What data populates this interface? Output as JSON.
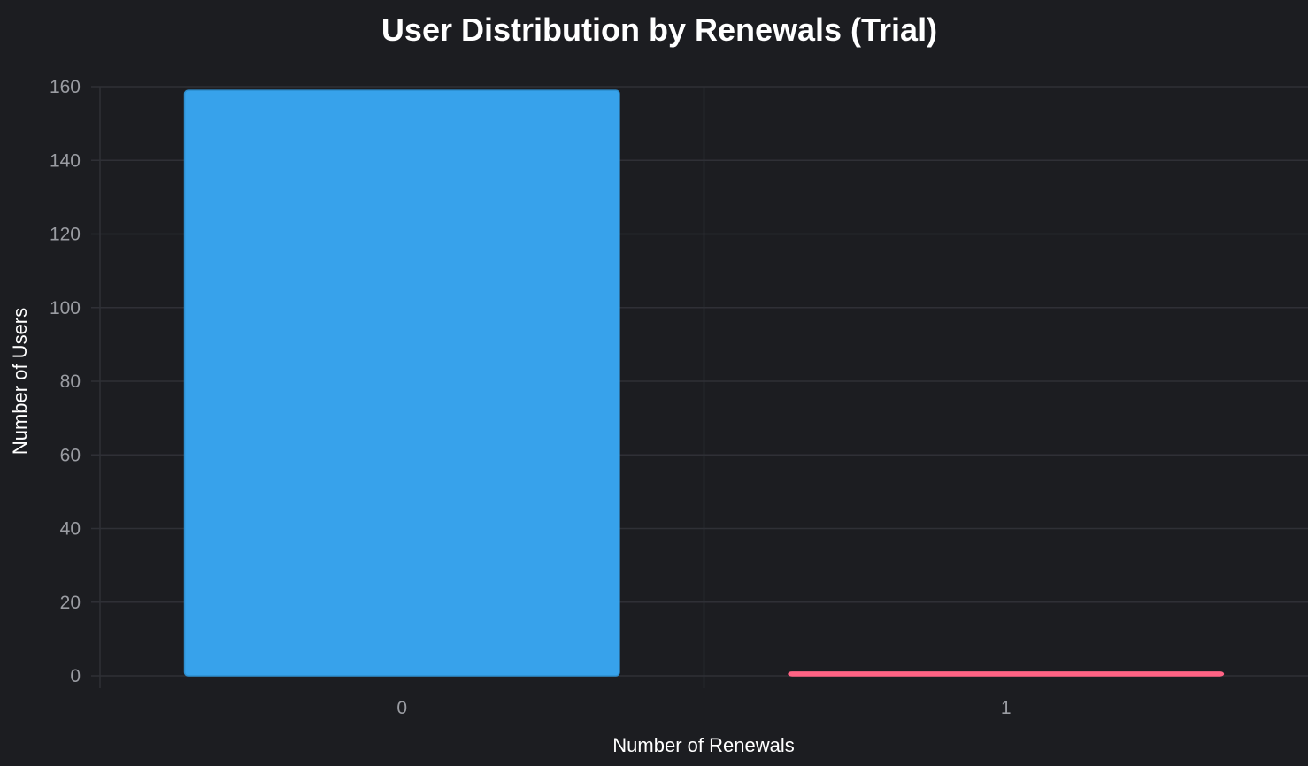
{
  "chart_data": {
    "type": "bar",
    "title": "User Distribution by Renewals (Trial)",
    "xlabel": "Number of Renewals",
    "ylabel": "Number of Users",
    "categories": [
      "0",
      "1"
    ],
    "values": [
      159,
      1
    ],
    "bar_colors": [
      "#37a2eb",
      "#ff6384"
    ],
    "bar_border_colors": [
      "#2e8fd0",
      "#ff6384"
    ],
    "ylim": [
      0,
      160
    ],
    "y_ticks": [
      0,
      20,
      40,
      60,
      80,
      100,
      120,
      140,
      160
    ],
    "grid": true,
    "legend": "none"
  },
  "colors": {
    "background": "#1c1d21",
    "grid": "#2f3036",
    "tick_text": "#9a9ca2",
    "title_text": "#ffffff"
  }
}
